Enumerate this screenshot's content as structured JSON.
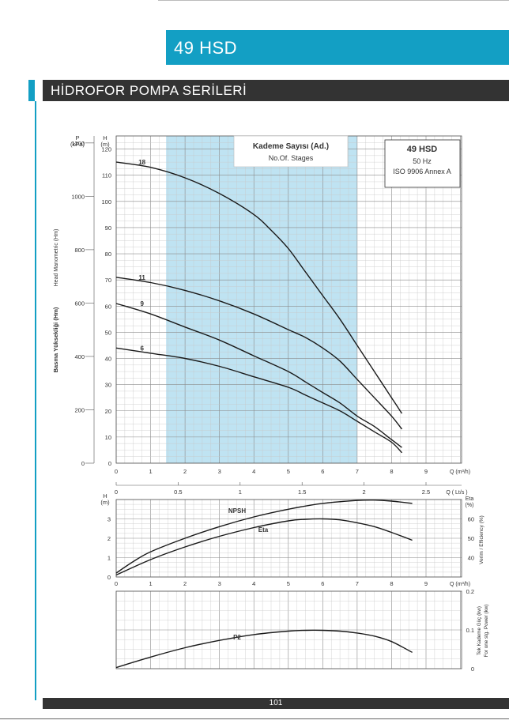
{
  "page": {
    "model_title": "49 HSD",
    "series_title": "HİDROFOR POMPA SERİLERİ",
    "page_number": "101",
    "accent_color": "#139fc4"
  },
  "chart_data": [
    {
      "type": "line",
      "name": "performance",
      "info_title": "49 HSD",
      "info_lines": [
        "50 Hz",
        "ISO 9906 Annex A"
      ],
      "stage_box_title": "Kademe Sayısı (Ad.)",
      "stage_box_sub": "No.Of. Stages",
      "left_axis_primary": "Basma Yüksekliği (Hm)",
      "left_axis_secondary": "Head Manometric (Hm)",
      "p_unit_top": "P",
      "p_unit_bottom": "(kPa)",
      "h_unit_top": "H",
      "h_unit_bottom": "(m)",
      "q_m3h_label": "Q (m³/h)",
      "q_lts_label": "Q ( Lt/s )",
      "xlim": [
        0,
        10
      ],
      "ylim": [
        0,
        125
      ],
      "x_ticks": [
        0,
        1,
        2,
        3,
        4,
        5,
        6,
        7,
        8,
        9
      ],
      "y_ticks": [
        0,
        10,
        20,
        30,
        40,
        50,
        60,
        70,
        80,
        90,
        100,
        110,
        120
      ],
      "p_ticks": [
        0,
        200,
        400,
        600,
        800,
        1000,
        1200
      ],
      "lts_ticks": [
        "0",
        "0.5",
        "1",
        "1.5",
        "2",
        "2.5"
      ],
      "lts_values": [
        0,
        0.5,
        1,
        1.5,
        2,
        2.5
      ],
      "highlight_range": [
        1.45,
        7.0
      ],
      "grid": true,
      "series": [
        {
          "name": "18",
          "x": [
            0,
            1,
            2,
            3,
            4,
            4.5,
            5,
            5.5,
            6,
            6.5,
            7,
            7.5,
            8,
            8.3
          ],
          "y": [
            115,
            113,
            109,
            103,
            95,
            89,
            82,
            73,
            64,
            55,
            45,
            35,
            25,
            19
          ]
        },
        {
          "name": "11",
          "x": [
            0,
            1,
            2,
            3,
            4,
            5,
            5.5,
            6,
            6.5,
            7,
            7.5,
            8,
            8.3
          ],
          "y": [
            71,
            69,
            66,
            62,
            57,
            51,
            48,
            44,
            39,
            32,
            25,
            18,
            13
          ]
        },
        {
          "name": "9",
          "x": [
            0,
            1,
            2,
            3,
            4,
            5,
            5.5,
            6,
            6.5,
            7,
            7.5,
            8,
            8.3
          ],
          "y": [
            61,
            57,
            52,
            47,
            41,
            35,
            31,
            27,
            23,
            18,
            14,
            9,
            6
          ]
        },
        {
          "name": "6",
          "x": [
            0,
            1,
            2,
            3,
            4,
            5,
            5.5,
            6,
            6.5,
            7,
            7.5,
            8,
            8.3
          ],
          "y": [
            44,
            42,
            40,
            37,
            33,
            29,
            26,
            23,
            20,
            16,
            12,
            8,
            4
          ]
        }
      ]
    },
    {
      "type": "line",
      "name": "npsh_efficiency",
      "left_unit_top": "H",
      "left_unit_bottom": "(m)",
      "right_unit_top": "Eta",
      "right_unit_bottom": "(%)",
      "right_axis_label": "Verim / Efficiency  (%)",
      "q_m3h_label": "Q (m³/h)",
      "xlim": [
        0,
        10
      ],
      "ylim": [
        0,
        4
      ],
      "y2lim": [
        30,
        70
      ],
      "x_ticks": [
        0,
        1,
        2,
        3,
        4,
        5,
        6,
        7,
        8,
        9
      ],
      "y_ticks": [
        0,
        1,
        2,
        3
      ],
      "y2_ticks": [
        40,
        50,
        60
      ],
      "grid": true,
      "series": [
        {
          "name": "NPSH",
          "axis": "left",
          "x": [
            0,
            0.5,
            1,
            2,
            3,
            4,
            5,
            6,
            7,
            7.5,
            8,
            8.6
          ],
          "y": [
            0.2,
            0.8,
            1.3,
            2.0,
            2.6,
            3.1,
            3.5,
            3.8,
            3.95,
            3.97,
            3.92,
            3.8
          ]
        },
        {
          "name": "Eta",
          "axis": "right",
          "x": [
            0,
            1,
            2,
            3,
            4,
            5,
            5.5,
            6,
            6.5,
            7,
            7.5,
            8,
            8.6
          ],
          "y": [
            31,
            39,
            45.5,
            51,
            55.5,
            59,
            59.8,
            60,
            59.5,
            58,
            56,
            53,
            49
          ]
        }
      ]
    },
    {
      "type": "line",
      "name": "power",
      "right_axis_primary": "Tek Kademe Güç (kw)",
      "right_axis_secondary": "For one stg. Power (kw)",
      "xlim": [
        0,
        10
      ],
      "ylim": [
        0,
        0.2
      ],
      "y_ticks": [
        "0",
        "0.1",
        "0.2"
      ],
      "y_values": [
        0,
        0.1,
        0.2
      ],
      "grid": true,
      "series": [
        {
          "name": "P2",
          "x": [
            0,
            1,
            2,
            3,
            4,
            5,
            5.5,
            6,
            6.5,
            7,
            7.5,
            8,
            8.6
          ],
          "y": [
            0.003,
            0.03,
            0.054,
            0.073,
            0.088,
            0.097,
            0.099,
            0.099,
            0.097,
            0.092,
            0.084,
            0.07,
            0.042
          ]
        }
      ]
    }
  ]
}
